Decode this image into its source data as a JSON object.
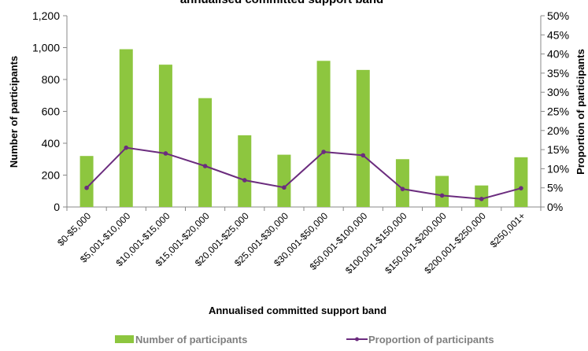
{
  "chart_data": {
    "type": "bar",
    "title": "annualised committed support band",
    "xlabel": "Annualised committed support band",
    "ylabel": "Number of participants",
    "y2label": "Proportion of participants",
    "categories": [
      "$0-$5,000",
      "$5,001-$10,000",
      "$10,001-$15,000",
      "$15,001-$20,000",
      "$20,001-$25,000",
      "$25,001-$30,000",
      "$30,001-$50,000",
      "$50,001-$100,000",
      "$100,001-$150,000",
      "$150,001-$200,000",
      "$200,001-$250,000",
      "$250,001+"
    ],
    "series": [
      {
        "name": "Number of participants",
        "type": "bar",
        "axis": "left",
        "color": "#8dc63f",
        "values": [
          320,
          990,
          893,
          683,
          450,
          328,
          917,
          860,
          300,
          195,
          135,
          312
        ]
      },
      {
        "name": "Proportion of participants",
        "type": "line",
        "axis": "right",
        "color": "#6b2c7e",
        "values": [
          5.0,
          15.5,
          14.0,
          10.7,
          7.0,
          5.1,
          14.4,
          13.5,
          4.7,
          3.0,
          2.1,
          4.9
        ]
      }
    ],
    "ylim": [
      0,
      1200
    ],
    "yticks": [
      "0",
      "200",
      "400",
      "600",
      "800",
      "1,000",
      "1,200"
    ],
    "y2lim": [
      0,
      50
    ],
    "y2ticks": [
      "0%",
      "5%",
      "10%",
      "15%",
      "20%",
      "25%",
      "30%",
      "35%",
      "40%",
      "45%",
      "50%"
    ],
    "grid": false,
    "legend_position": "bottom"
  }
}
